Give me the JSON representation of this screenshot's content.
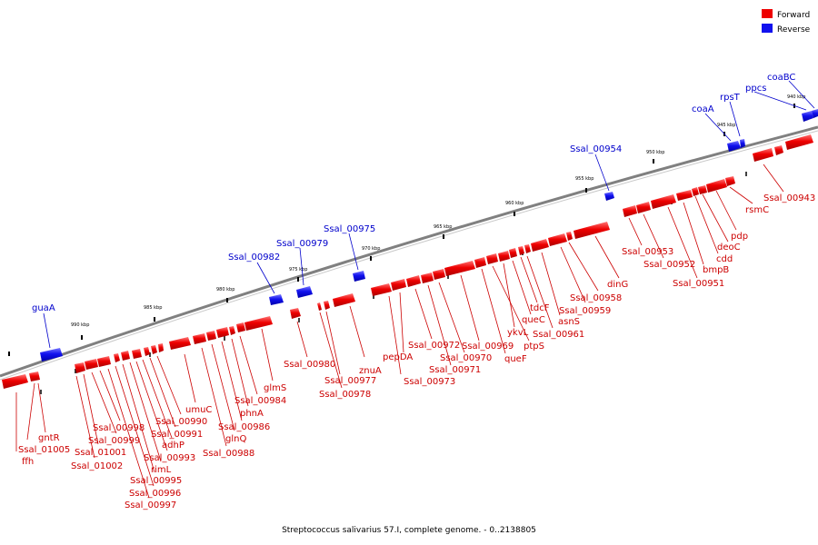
{
  "legend": {
    "forward": "Forward",
    "reverse": "Reverse"
  },
  "colors": {
    "forward": "#ee0000",
    "reverse": "#1111ee",
    "forward_text": "#cc0000",
    "reverse_text": "#0000cc"
  },
  "caption": "Streptococcus salivarius 57.I, complete genome. - 0..2138805",
  "ticks": [
    "940 kbp",
    "945 kbp",
    "950 kbp",
    "955 kbp",
    "960 kbp",
    "965 kbp",
    "970 kbp",
    "975 kbp",
    "980 kbp",
    "985 kbp",
    "990 kbp"
  ],
  "forward_labels": [
    "ffh",
    "Ssal_01005",
    "gntR",
    "Ssal_01002",
    "Ssal_01001",
    "Ssal_00999",
    "Ssal_00998",
    "Ssal_00997",
    "Ssal_00996",
    "Ssal_00995",
    "rimL",
    "Ssal_00993",
    "adhP",
    "Ssal_00991",
    "Ssal_00990",
    "umuC",
    "Ssal_00988",
    "glnQ",
    "Ssal_00986",
    "phnA",
    "Ssal_00984",
    "glmS",
    "Ssal_00980",
    "Ssal_00978",
    "Ssal_00977",
    "znuA",
    "Ssal_00973",
    "pepDA",
    "Ssal_00972",
    "Ssal_00971",
    "Ssal_00970",
    "Ssal_00969",
    "queF",
    "ptpS",
    "ykvL",
    "queC",
    "tdcF",
    "Ssal_00961",
    "asnS",
    "Ssal_00959",
    "Ssal_00958",
    "dinG",
    "Ssal_00953",
    "Ssal_00952",
    "Ssal_00951",
    "bmpB",
    "cdd",
    "deoC",
    "pdp",
    "rsmC",
    "Ssal_00943"
  ],
  "reverse_labels": [
    "guaA",
    "Ssal_00982",
    "Ssal_00979",
    "Ssal_00975",
    "Ssal_00954",
    "coaA",
    "rpsT",
    "ppcs",
    "coaBC"
  ]
}
